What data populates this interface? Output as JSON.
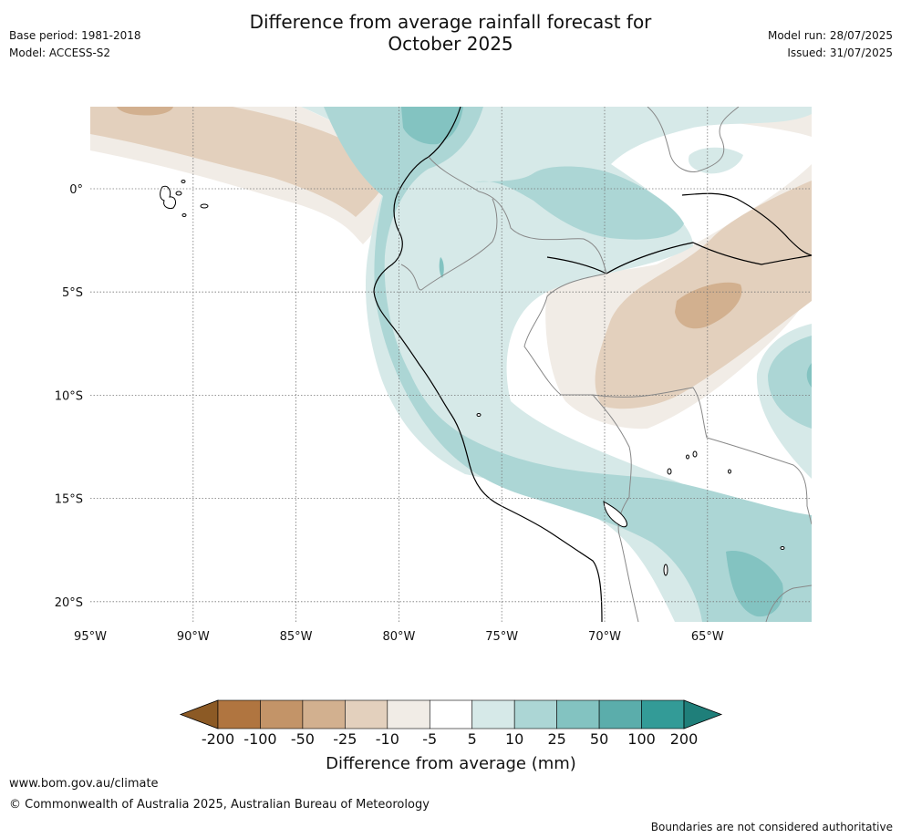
{
  "header": {
    "title_line1": "Difference from average rainfall forecast for",
    "title_line2": "October 2025",
    "base_period": "Base period: 1981-2018",
    "model": "Model: ACCESS-S2",
    "model_run": "Model run: 28/07/2025",
    "issued": "Issued: 31/07/2025"
  },
  "map": {
    "lon_labels": [
      "95°W",
      "90°W",
      "85°W",
      "80°W",
      "75°W",
      "70°W",
      "65°W"
    ],
    "lat_labels": [
      "0°",
      "5°S",
      "10°S",
      "15°S",
      "20°S"
    ],
    "gridlines": "dotted"
  },
  "colorbar": {
    "title": "Difference from average (mm)",
    "ticks": [
      "-200",
      "-100",
      "-50",
      "-25",
      "-10",
      "-5",
      "5",
      "10",
      "25",
      "50",
      "100",
      "200"
    ],
    "colors": [
      "#8c5a25",
      "#b07540",
      "#c39468",
      "#d2b08f",
      "#e3d0bd",
      "#f1ece6",
      "#ffffff",
      "#d6e9e8",
      "#acd6d5",
      "#83c3c1",
      "#5badab",
      "#339b97",
      "#1f7f7a"
    ]
  },
  "footer": {
    "url": "www.bom.gov.au/climate",
    "copyright": "© Commonwealth of Australia 2025, Australian Bureau of Meteorology",
    "disclaimer": "Boundaries are not considered authoritative"
  }
}
